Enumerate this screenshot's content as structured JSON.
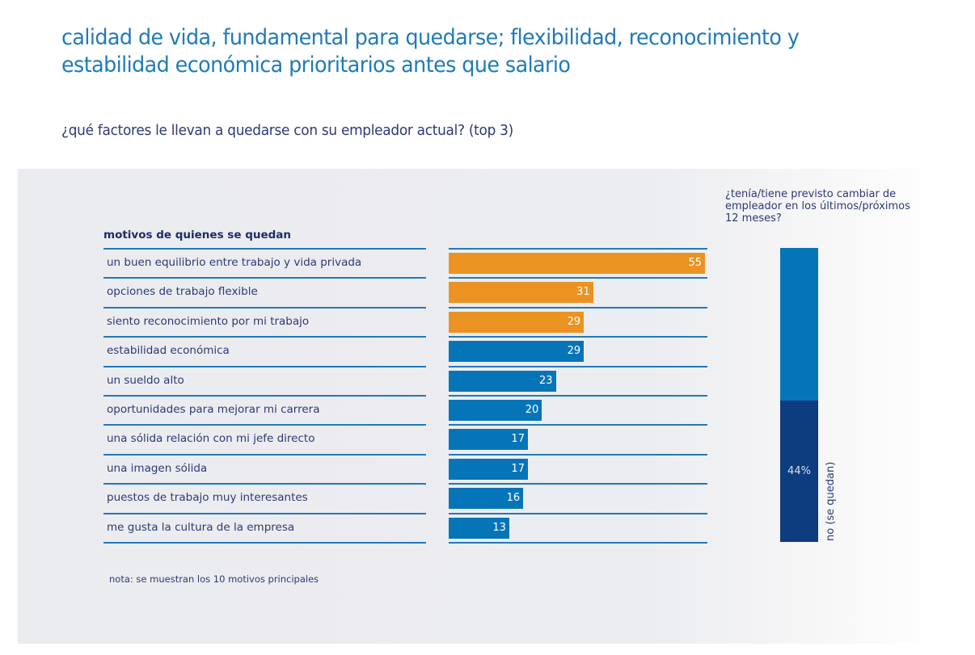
{
  "header": {
    "title": "calidad de vida, fundamental para quedarse; flexibilidad, reconocimiento y estabilidad económica prioritarios antes que salario",
    "subtitle": "¿qué factores le llevan a quedarse con su empleador actual? (top 3)"
  },
  "colors": {
    "highlight": "#ea9322",
    "primary": "#0675b8",
    "dark": "#0d3d7e",
    "rule": "#2179bd",
    "title": "#1f7bb8"
  },
  "chart_data": [
    {
      "type": "bar",
      "orientation": "horizontal",
      "title": "motivos de quienes se quedan",
      "categories": [
        "un buen equilibrio entre trabajo y vida privada",
        "opciones de trabajo flexible",
        "siento reconocimiento por mi trabajo",
        "estabilidad económica",
        "un sueldo alto",
        "oportunidades para mejorar mi carrera",
        "una sólida relación con mi jefe directo",
        "una imagen sólida",
        "puestos de trabajo muy interesantes",
        "me gusta la cultura de la empresa"
      ],
      "values": [
        55,
        31,
        29,
        29,
        23,
        20,
        17,
        17,
        16,
        13
      ],
      "highlighted": [
        true,
        true,
        true,
        false,
        false,
        false,
        false,
        false,
        false,
        false
      ],
      "unit": "%",
      "xlim": [
        0,
        55
      ],
      "note": "nota: se muestran los 10 motivos principales"
    },
    {
      "type": "bar",
      "orientation": "vertical-stacked",
      "title": "¿tenía/tiene previsto cambiar de empleador en los últimos/próximos 12 meses?",
      "segments": [
        {
          "name": "no (se quedan)",
          "value": 44,
          "label": "44%"
        },
        {
          "name": "",
          "value": 56,
          "label": ""
        }
      ],
      "unit": "%"
    }
  ]
}
